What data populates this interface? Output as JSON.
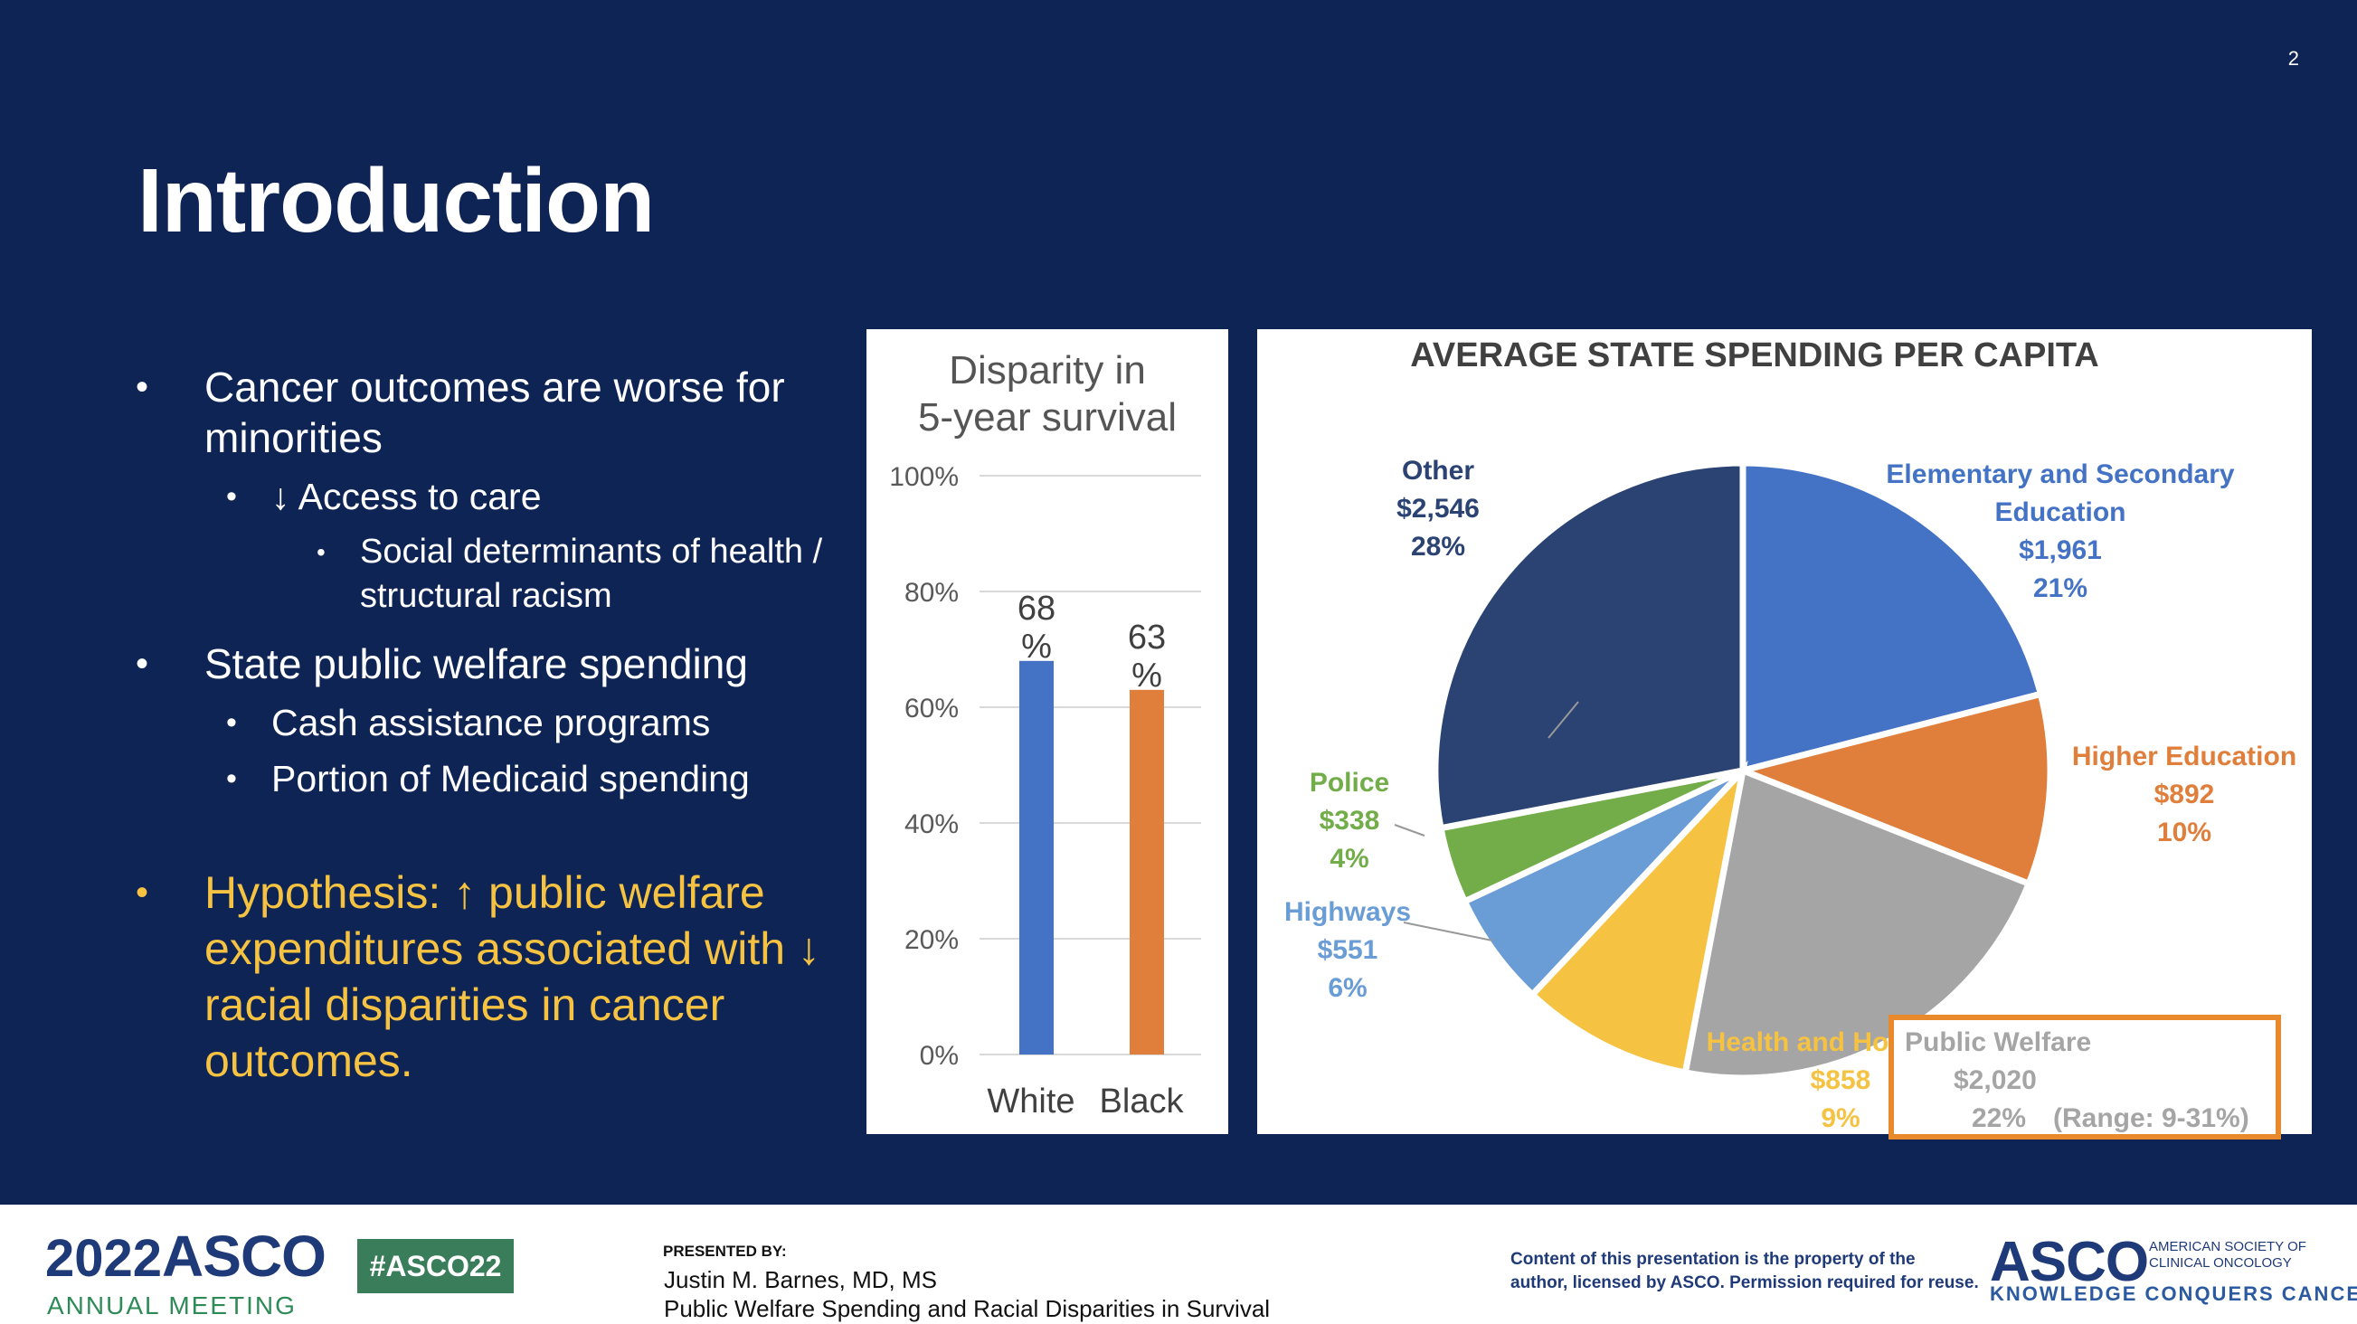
{
  "slide": {
    "number": "2",
    "title": "Introduction",
    "bullets": [
      {
        "level": 1,
        "text": "Cancer outcomes are worse for minorities"
      },
      {
        "level": 2,
        "text": "↓ Access to care"
      },
      {
        "level": 3,
        "text": "Social determinants of health / structural racism"
      },
      {
        "level": 1,
        "text": "State public welfare spending"
      },
      {
        "level": 2,
        "text": "Cash assistance programs"
      },
      {
        "level": 2,
        "text": "Portion of Medicaid spending"
      }
    ],
    "hypothesis": "Hypothesis: ↑ public welfare expenditures associated with ↓ racial disparities in cancer outcomes."
  },
  "chart_data": [
    {
      "type": "bar",
      "title": "Disparity in 5-year survival",
      "categories": [
        "White",
        "Black"
      ],
      "values": [
        68,
        63
      ],
      "data_labels": [
        "68 %",
        "63 %"
      ],
      "ylim": [
        0,
        100
      ],
      "yticks": [
        "0%",
        "20%",
        "40%",
        "60%",
        "80%",
        "100%"
      ],
      "colors": [
        "#4472c4",
        "#e07f3c"
      ],
      "grid": true
    },
    {
      "type": "pie",
      "title": "AVERAGE STATE SPENDING PER CAPITA",
      "slices": [
        {
          "label": "Elementary and Secondary Education",
          "amount": "$1,961",
          "percent": 21,
          "pct_label": "21%",
          "color": "#4472c4"
        },
        {
          "label": "Higher Education",
          "amount": "$892",
          "percent": 10,
          "pct_label": "10%",
          "color": "#e07f3c"
        },
        {
          "label": "Public Welfare",
          "amount": "$2,020",
          "percent": 22,
          "pct_label": "22%",
          "note": "(Range: 9-31%)",
          "color": "#a5a5a5"
        },
        {
          "label": "Health and Hospitals",
          "amount": "$858",
          "percent": 9,
          "pct_label": "9%",
          "color": "#f5c242"
        },
        {
          "label": "Highways",
          "amount": "$551",
          "percent": 6,
          "pct_label": "6%",
          "color": "#6a9cd6"
        },
        {
          "label": "Police",
          "amount": "$338",
          "percent": 4,
          "pct_label": "4%",
          "color": "#72ad4a"
        },
        {
          "label": "Other",
          "amount": "$2,546",
          "percent": 28,
          "pct_label": "28%",
          "color": "#2b4373"
        }
      ],
      "highlight": {
        "slice": "Public Welfare",
        "color": "#e88a2c"
      }
    }
  ],
  "footer": {
    "year": "2022",
    "asco": "ASCO",
    "meeting": "ANNUAL MEETING",
    "hashtag": "#ASCO22",
    "presented_by": "PRESENTED BY:",
    "author": "Justin M. Barnes, MD, MS",
    "talk_title": "Public Welfare Spending and Racial Disparities in Survival",
    "notice_line1": "Content of this presentation is the property of the",
    "notice_line2": "author, licensed by ASCO. Permission required for reuse.",
    "logo_text": "ASCO",
    "logo_sub1": "AMERICAN SOCIETY OF",
    "logo_sub2": "CLINICAL ONCOLOGY",
    "tagline": "KNOWLEDGE CONQUERS CANCER"
  }
}
